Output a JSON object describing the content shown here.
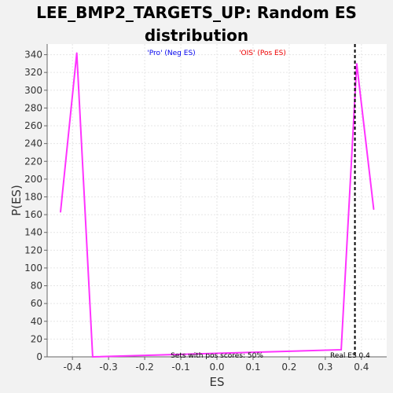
{
  "chart_data": {
    "type": "line",
    "title_line1": "LEE_BMP2_TARGETS_UP: Random ES",
    "title_line2": "distribution",
    "xlabel": "ES",
    "ylabel": "P(ES)",
    "xlim": [
      -0.47,
      0.47
    ],
    "ylim": [
      0,
      352
    ],
    "x_ticks": [
      -0.4,
      -0.3,
      -0.2,
      -0.1,
      0.0,
      0.1,
      0.2,
      0.3,
      0.4
    ],
    "x_tick_labels": [
      "-0.4",
      "-0.3",
      "-0.2",
      "-0.1",
      "0.0",
      "0.1",
      "0.2",
      "0.3",
      "0.4"
    ],
    "y_ticks": [
      0,
      20,
      40,
      60,
      80,
      100,
      120,
      140,
      160,
      180,
      200,
      220,
      240,
      260,
      280,
      300,
      320,
      340
    ],
    "y_tick_labels": [
      "0",
      "20",
      "40",
      "60",
      "80",
      "100",
      "120",
      "140",
      "160",
      "180",
      "200",
      "220",
      "240",
      "260",
      "280",
      "300",
      "320",
      "340"
    ],
    "grid": true,
    "series": [
      {
        "color": "#ff33ff",
        "x": [
          -0.433,
          -0.388,
          -0.344,
          0.344,
          0.387,
          0.434
        ],
        "y": [
          163,
          342,
          0,
          8,
          330,
          166
        ]
      }
    ],
    "real_es": 0.382,
    "annotations": {
      "neg_label": "'Pro' (Neg ES)",
      "neg_color": "#0000ee",
      "pos_label": "'OIS' (Pos ES)",
      "pos_color": "#ee0000",
      "sets_text": "Sets with pos scores: 50%",
      "real_es_text": "Real ES 0.4"
    },
    "colors": {
      "background": "#f2f2f2",
      "plot_background": "#ffffff",
      "grid": "#e6e6e6",
      "axis": "#666666"
    }
  }
}
